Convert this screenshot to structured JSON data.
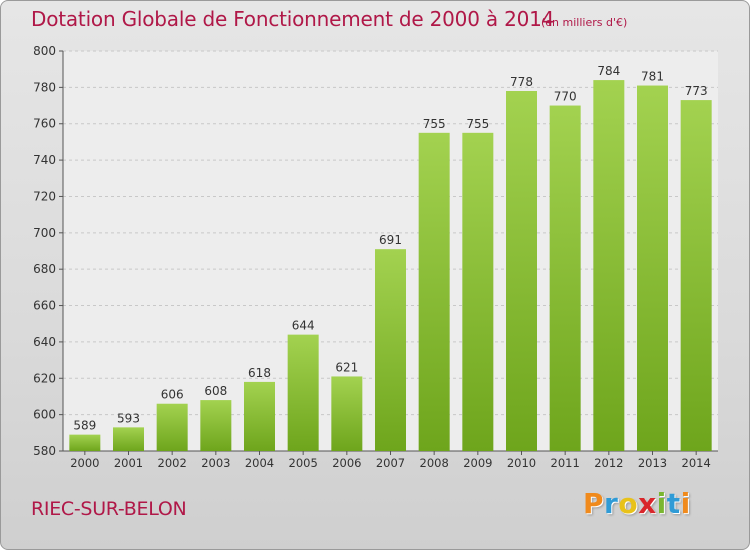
{
  "chart_data": {
    "type": "bar",
    "title": "Dotation Globale de Fonctionnement de 2000 à 2014",
    "subtitle": "(en milliers d'€)",
    "categories": [
      "2000",
      "2001",
      "2002",
      "2003",
      "2004",
      "2005",
      "2006",
      "2007",
      "2008",
      "2009",
      "2010",
      "2011",
      "2012",
      "2013",
      "2014"
    ],
    "values": [
      589,
      593,
      606,
      608,
      618,
      644,
      621,
      691,
      755,
      755,
      778,
      770,
      784,
      781,
      773
    ],
    "ylim": [
      580,
      800
    ],
    "yticks": [
      580,
      600,
      620,
      640,
      660,
      680,
      700,
      720,
      740,
      760,
      780,
      800
    ],
    "grid": true,
    "data_labels": true,
    "bar_color": "#8bc13f"
  },
  "location": "RIEC-SUR-BELON",
  "logo": {
    "letters": [
      "P",
      "r",
      "o",
      "x",
      "i",
      "t",
      "i"
    ],
    "colors": [
      "#f08a1c",
      "#2f9bd6",
      "#e8c21a",
      "#d9262b",
      "#7ab630",
      "#2f9bd6",
      "#f08a1c"
    ]
  }
}
